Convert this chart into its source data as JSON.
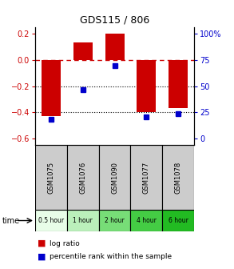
{
  "title": "GDS115 / 806",
  "samples": [
    "GSM1075",
    "GSM1076",
    "GSM1090",
    "GSM1077",
    "GSM1078"
  ],
  "time_labels": [
    "0.5 hour",
    "1 hour",
    "2 hour",
    "4 hour",
    "6 hour"
  ],
  "time_colors": [
    "#e8fde8",
    "#bbf0bb",
    "#77dd77",
    "#44cc44",
    "#22bb22"
  ],
  "log_ratios": [
    -0.43,
    0.13,
    0.2,
    -0.4,
    -0.37
  ],
  "percentile_ranks": [
    22,
    47,
    67,
    24,
    27
  ],
  "bar_color": "#cc0000",
  "dot_color": "#0000cc",
  "left_ylim": [
    -0.65,
    0.25
  ],
  "left_yticks": [
    0.2,
    0.0,
    -0.2,
    -0.4,
    -0.6
  ],
  "right_ytick_labels": [
    "100%",
    "75",
    "50",
    "25",
    "0"
  ],
  "hline_zero_color": "#cc0000",
  "hline_dotted_vals": [
    -0.2,
    -0.4
  ],
  "legend_log": "log ratio",
  "legend_pct": "percentile rank within the sample",
  "background_color": "#ffffff",
  "bar_width": 0.6,
  "gsm_bg": "#cccccc"
}
